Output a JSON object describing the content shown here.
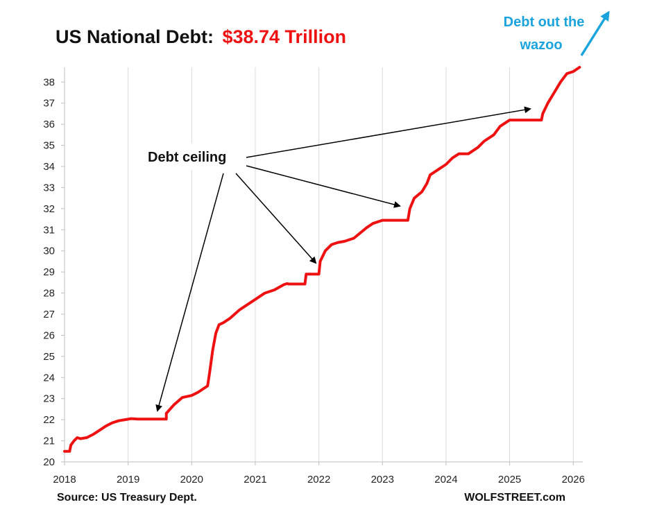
{
  "title": "US National Debt:",
  "title_value": "$38.74 Trillion",
  "colors": {
    "series": "#ee1111",
    "title_value": "#ee1111",
    "wazoo": "#1aa3dd",
    "grid": "#d9d9d9",
    "arrow": "#000000"
  },
  "source": "Source: US Treasury Dept.",
  "watermark": "WOLFSTREET.com",
  "annotations": {
    "debt_ceiling": "Debt ceiling",
    "wazoo_line1": "Debt out the",
    "wazoo_line2": "wazoo"
  },
  "chart_data": {
    "type": "line",
    "title": "US National Debt: $38.74 Trillion",
    "xlabel": "",
    "ylabel": "",
    "xlim": [
      2018,
      2026.15
    ],
    "ylim": [
      20,
      38.7
    ],
    "x_ticks": [
      2018,
      2019,
      2020,
      2021,
      2022,
      2023,
      2024,
      2025,
      2026
    ],
    "y_ticks": [
      20,
      21,
      22,
      23,
      24,
      25,
      26,
      27,
      28,
      29,
      30,
      31,
      32,
      33,
      34,
      35,
      36,
      37,
      38
    ],
    "grid": "vertical",
    "series": [
      {
        "x": [
          2018.0,
          2018.08,
          2018.1,
          2018.15,
          2018.2,
          2018.25,
          2018.35,
          2018.45,
          2018.55,
          2018.65,
          2018.75,
          2018.85,
          2018.95,
          2019.05,
          2019.15,
          2019.17,
          2019.6,
          2019.6,
          2019.72,
          2019.85,
          2020.0,
          2020.1,
          2020.2,
          2020.25,
          2020.28,
          2020.33,
          2020.38,
          2020.43,
          2020.5,
          2020.6,
          2020.75,
          2020.85,
          2021.0,
          2021.15,
          2021.3,
          2021.45,
          2021.5,
          2021.53,
          2021.78,
          2021.8,
          2022.0,
          2022.02,
          2022.1,
          2022.2,
          2022.3,
          2022.4,
          2022.55,
          2022.75,
          2022.85,
          2023.0,
          2023.05,
          2023.4,
          2023.43,
          2023.5,
          2023.62,
          2023.7,
          2023.75,
          2023.85,
          2024.0,
          2024.1,
          2024.2,
          2024.35,
          2024.5,
          2024.6,
          2024.75,
          2024.85,
          2025.0,
          2025.05,
          2025.5,
          2025.52,
          2025.6,
          2025.7,
          2025.8,
          2025.9,
          2026.0,
          2026.1
        ],
        "y": [
          20.5,
          20.5,
          20.8,
          21.0,
          21.15,
          21.1,
          21.15,
          21.3,
          21.5,
          21.7,
          21.85,
          21.95,
          22.0,
          22.05,
          22.03,
          22.03,
          22.03,
          22.3,
          22.7,
          23.05,
          23.15,
          23.3,
          23.5,
          23.6,
          24.2,
          25.3,
          26.1,
          26.5,
          26.6,
          26.8,
          27.2,
          27.4,
          27.7,
          28.0,
          28.15,
          28.4,
          28.45,
          28.43,
          28.43,
          28.9,
          28.9,
          29.5,
          30.0,
          30.3,
          30.4,
          30.45,
          30.6,
          31.1,
          31.3,
          31.45,
          31.45,
          31.45,
          32.0,
          32.5,
          32.8,
          33.2,
          33.6,
          33.8,
          34.1,
          34.4,
          34.6,
          34.6,
          34.9,
          35.2,
          35.5,
          35.9,
          36.2,
          36.2,
          36.2,
          36.5,
          37.0,
          37.5,
          38.0,
          38.4,
          38.5,
          38.7
        ]
      }
    ]
  }
}
